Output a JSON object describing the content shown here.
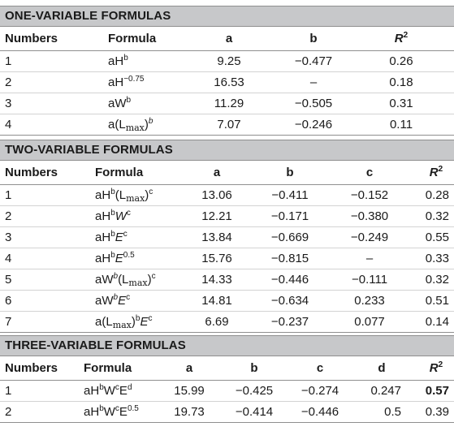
{
  "sections": {
    "one": {
      "title": "ONE-VARIABLE FORMULAS",
      "headers": {
        "numbers": "Numbers",
        "formula": "Formula",
        "a": "a",
        "b": "b",
        "r2_base": "R",
        "r2_exp": "2"
      },
      "rows": [
        {
          "num": "1",
          "f": [
            "aH",
            "b"
          ],
          "a": "9.25",
          "b": "−0.477",
          "r2": "0.26"
        },
        {
          "num": "2",
          "f": [
            "aH",
            "−0.75"
          ],
          "a": "16.53",
          "b": "–",
          "r2": "0.18"
        },
        {
          "num": "3",
          "f": [
            "aW",
            "b"
          ],
          "a": "11.29",
          "b": "−0.505",
          "r2": "0.31"
        },
        {
          "num": "4",
          "f": [
            "a(L",
            "max",
            ")",
            "b"
          ],
          "a": "7.07",
          "b": "−0.246",
          "r2": "0.11"
        }
      ]
    },
    "two": {
      "title": "TWO-VARIABLE FORMULAS",
      "headers": {
        "numbers": "Numbers",
        "formula": "Formula",
        "a": "a",
        "b": "b",
        "c": "c",
        "r2_base": "R",
        "r2_exp": "2"
      },
      "rows": [
        {
          "num": "1",
          "f": [
            "aH",
            "b",
            "(L",
            "max",
            ")",
            "c"
          ],
          "a": "13.06",
          "b": "−0.411",
          "c": "−0.152",
          "r2": "0.28"
        },
        {
          "num": "2",
          "f": [
            "aH",
            "b",
            "W",
            "c"
          ],
          "a": "12.21",
          "b": "−0.171",
          "c": "−0.380",
          "r2": "0.32"
        },
        {
          "num": "3",
          "f": [
            "aH",
            "b",
            "E",
            "c"
          ],
          "a": "13.84",
          "b": "−0.669",
          "c": "−0.249",
          "r2": "0.55"
        },
        {
          "num": "4",
          "f": [
            "aH",
            "b",
            "E",
            "0.5"
          ],
          "a": "15.76",
          "b": "−0.815",
          "c": "–",
          "r2": "0.33"
        },
        {
          "num": "5",
          "f": [
            "aW",
            "b",
            "(L",
            "max",
            ")",
            "c"
          ],
          "a": "14.33",
          "b": "−0.446",
          "c": "−0.111",
          "r2": "0.32"
        },
        {
          "num": "6",
          "f": [
            "aW",
            "b",
            "E",
            "c"
          ],
          "a": "14.81",
          "b": "−0.634",
          "c": "0.233",
          "r2": "0.51"
        },
        {
          "num": "7",
          "f": [
            "a(L",
            "max",
            ")",
            "b",
            "E",
            "c"
          ],
          "a": "6.69",
          "b": "−0.237",
          "c": "0.077",
          "r2": "0.14"
        }
      ]
    },
    "three": {
      "title": "THREE-VARIABLE FORMULAS",
      "headers": {
        "numbers": "Numbers",
        "formula": "Formula",
        "a": "a",
        "b": "b",
        "c": "c",
        "d": "d",
        "r2_base": "R",
        "r2_exp": "2"
      },
      "rows": [
        {
          "num": "1",
          "f": [
            "aH",
            "b",
            "W",
            "c",
            "E",
            "d"
          ],
          "a": "15.99",
          "b": "−0.425",
          "c": "−0.274",
          "d": "0.247",
          "r2": "0.57"
        },
        {
          "num": "2",
          "f": [
            "aH",
            "b",
            "W",
            "c",
            "E",
            "0.5"
          ],
          "a": "19.73",
          "b": "−0.414",
          "c": "−0.446",
          "d": "0.5",
          "r2": "0.39"
        }
      ]
    }
  }
}
